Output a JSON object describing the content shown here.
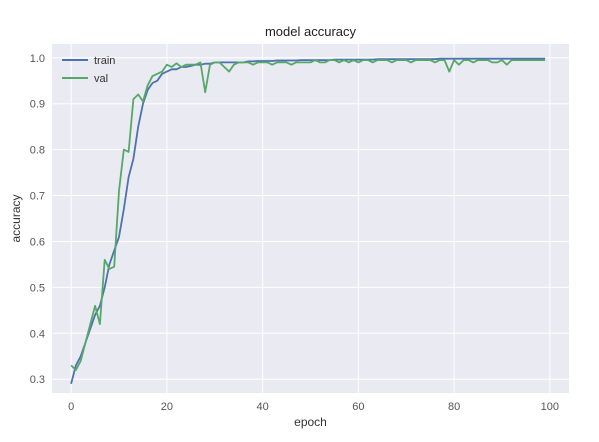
{
  "chart_data": {
    "type": "line",
    "title": "model accuracy",
    "xlabel": "epoch",
    "ylabel": "accuracy",
    "xlim": [
      -4,
      104
    ],
    "ylim": [
      0.27,
      1.03
    ],
    "xticks": [
      0,
      20,
      40,
      60,
      80,
      100
    ],
    "yticks": [
      0.3,
      0.4,
      0.5,
      0.6,
      0.7,
      0.8,
      0.9,
      1.0
    ],
    "xtick_labels": [
      "0",
      "20",
      "40",
      "60",
      "80",
      "100"
    ],
    "ytick_labels": [
      "0.3",
      "0.4",
      "0.5",
      "0.6",
      "0.7",
      "0.8",
      "0.9",
      "1.0"
    ],
    "grid": true,
    "legend_position": "upper-left",
    "series": [
      {
        "name": "train",
        "color": "#4c72b0",
        "x": [
          0,
          1,
          2,
          3,
          4,
          5,
          6,
          7,
          8,
          9,
          10,
          11,
          12,
          13,
          14,
          15,
          16,
          17,
          18,
          19,
          20,
          21,
          22,
          23,
          24,
          25,
          26,
          27,
          28,
          29,
          30,
          31,
          32,
          33,
          34,
          35,
          36,
          37,
          38,
          39,
          40,
          41,
          42,
          43,
          44,
          45,
          46,
          47,
          48,
          49,
          50,
          51,
          52,
          53,
          54,
          55,
          56,
          57,
          58,
          59,
          60,
          61,
          62,
          63,
          64,
          65,
          66,
          67,
          68,
          69,
          70,
          71,
          72,
          73,
          74,
          75,
          76,
          77,
          78,
          79,
          80,
          81,
          82,
          83,
          84,
          85,
          86,
          87,
          88,
          89,
          90,
          91,
          92,
          93,
          94,
          95,
          96,
          97,
          98,
          99
        ],
        "values": [
          0.29,
          0.33,
          0.35,
          0.38,
          0.41,
          0.44,
          0.46,
          0.5,
          0.55,
          0.58,
          0.61,
          0.67,
          0.74,
          0.78,
          0.85,
          0.9,
          0.93,
          0.945,
          0.95,
          0.965,
          0.97,
          0.975,
          0.975,
          0.98,
          0.98,
          0.982,
          0.985,
          0.985,
          0.987,
          0.987,
          0.99,
          0.99,
          0.99,
          0.99,
          0.99,
          0.99,
          0.99,
          0.992,
          0.992,
          0.993,
          0.993,
          0.993,
          0.993,
          0.994,
          0.994,
          0.994,
          0.994,
          0.994,
          0.995,
          0.995,
          0.995,
          0.995,
          0.995,
          0.995,
          0.995,
          0.996,
          0.996,
          0.996,
          0.996,
          0.996,
          0.996,
          0.996,
          0.996,
          0.996,
          0.997,
          0.997,
          0.997,
          0.997,
          0.997,
          0.997,
          0.997,
          0.997,
          0.997,
          0.997,
          0.997,
          0.997,
          0.997,
          0.998,
          0.998,
          0.998,
          0.998,
          0.998,
          0.998,
          0.998,
          0.998,
          0.998,
          0.998,
          0.998,
          0.998,
          0.998,
          0.998,
          0.998,
          0.998,
          0.998,
          0.998,
          0.998,
          0.998,
          0.998,
          0.998,
          0.998
        ]
      },
      {
        "name": "val",
        "color": "#55a868",
        "x": [
          0,
          1,
          2,
          3,
          4,
          5,
          6,
          7,
          8,
          9,
          10,
          11,
          12,
          13,
          14,
          15,
          16,
          17,
          18,
          19,
          20,
          21,
          22,
          23,
          24,
          25,
          26,
          27,
          28,
          29,
          30,
          31,
          32,
          33,
          34,
          35,
          36,
          37,
          38,
          39,
          40,
          41,
          42,
          43,
          44,
          45,
          46,
          47,
          48,
          49,
          50,
          51,
          52,
          53,
          54,
          55,
          56,
          57,
          58,
          59,
          60,
          61,
          62,
          63,
          64,
          65,
          66,
          67,
          68,
          69,
          70,
          71,
          72,
          73,
          74,
          75,
          76,
          77,
          78,
          79,
          80,
          81,
          82,
          83,
          84,
          85,
          86,
          87,
          88,
          89,
          90,
          91,
          92,
          93,
          94,
          95,
          96,
          97,
          98,
          99
        ],
        "values": [
          0.33,
          0.32,
          0.34,
          0.38,
          0.42,
          0.46,
          0.42,
          0.56,
          0.54,
          0.545,
          0.71,
          0.8,
          0.795,
          0.91,
          0.92,
          0.905,
          0.94,
          0.96,
          0.965,
          0.97,
          0.985,
          0.98,
          0.988,
          0.98,
          0.985,
          0.985,
          0.985,
          0.99,
          0.925,
          0.985,
          0.99,
          0.99,
          0.98,
          0.97,
          0.985,
          0.99,
          0.99,
          0.99,
          0.985,
          0.99,
          0.99,
          0.99,
          0.985,
          0.99,
          0.99,
          0.99,
          0.985,
          0.99,
          0.99,
          0.99,
          0.99,
          0.995,
          0.99,
          0.99,
          0.995,
          0.995,
          0.99,
          0.995,
          0.99,
          0.995,
          0.99,
          0.995,
          0.995,
          0.99,
          0.995,
          0.995,
          0.995,
          0.99,
          0.995,
          0.995,
          0.995,
          0.99,
          0.995,
          0.995,
          0.995,
          0.995,
          0.99,
          0.995,
          0.995,
          0.97,
          0.995,
          0.985,
          0.995,
          0.995,
          0.99,
          0.995,
          0.995,
          0.995,
          0.99,
          0.99,
          0.995,
          0.985,
          0.995,
          0.995,
          0.995,
          0.995,
          0.995,
          0.995,
          0.995,
          0.995
        ]
      }
    ]
  }
}
